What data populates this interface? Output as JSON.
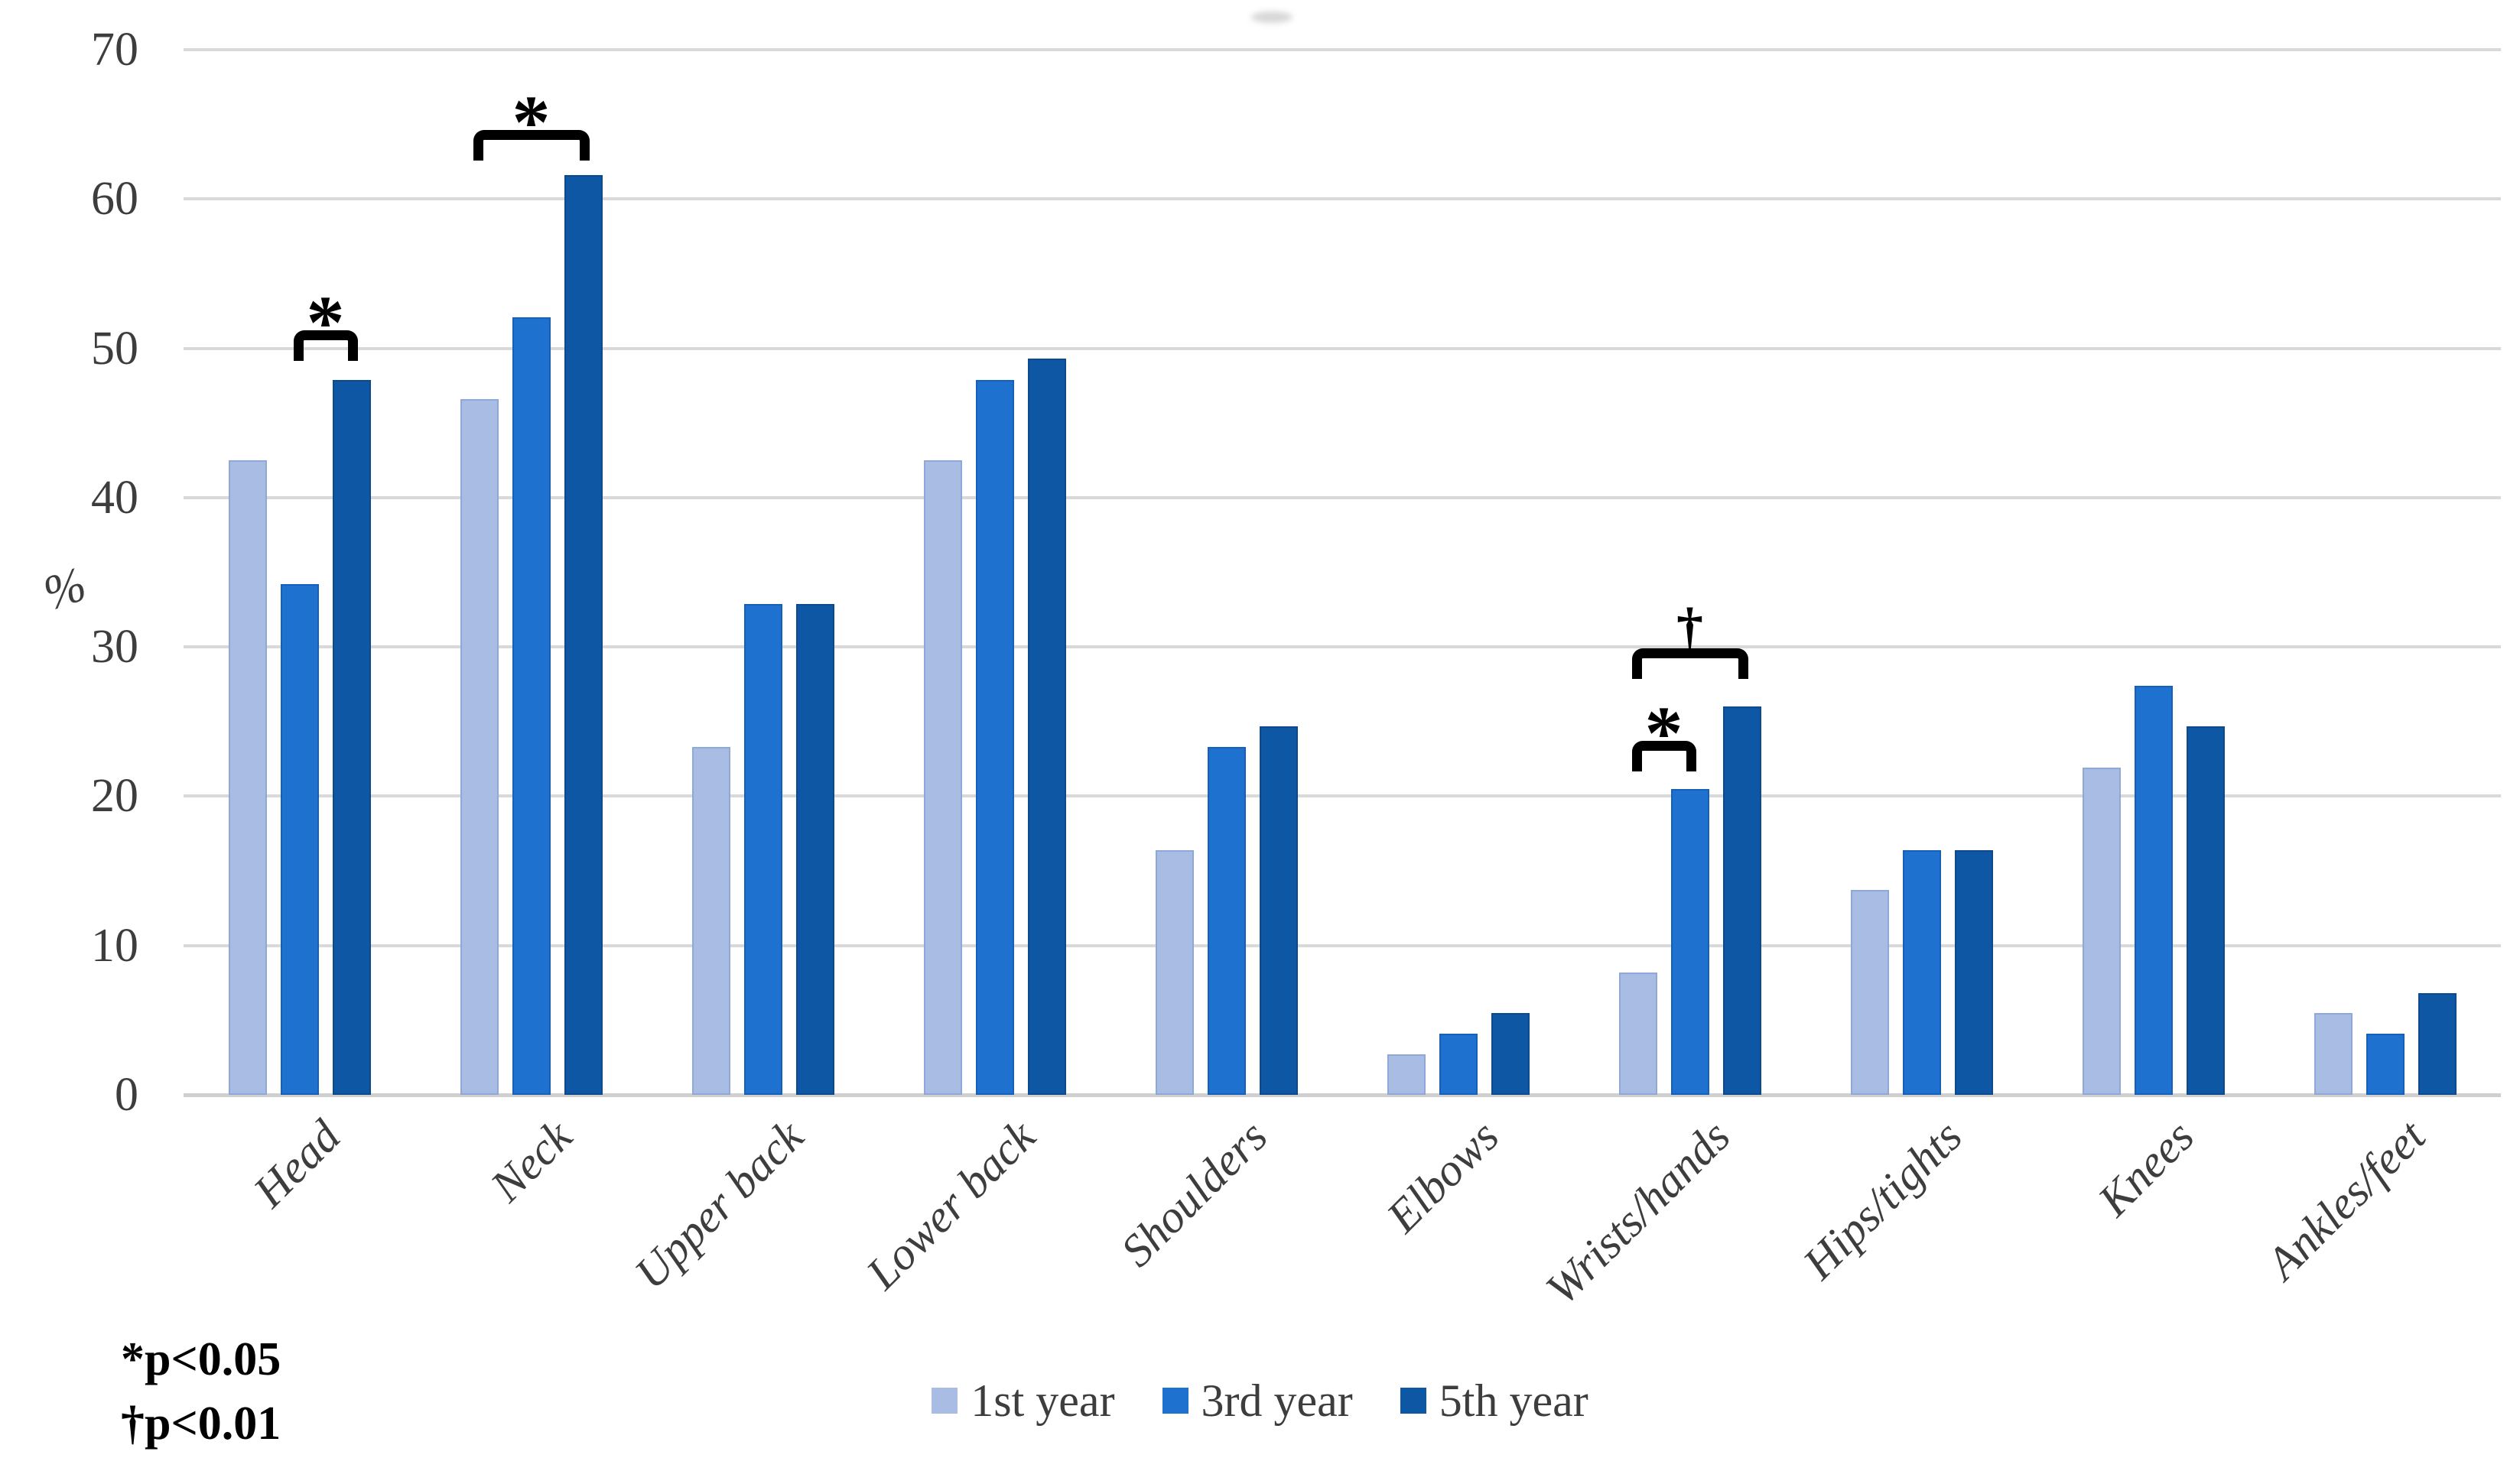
{
  "chart_data": {
    "type": "bar",
    "title": "",
    "xlabel": "",
    "ylabel": "%",
    "ylim": [
      0,
      70
    ],
    "yticks": [
      0,
      10,
      20,
      30,
      40,
      50,
      60,
      70
    ],
    "grid": true,
    "legend_position": "bottom",
    "categories": [
      "Head",
      "Neck",
      "Upper back",
      "Lower back",
      "Shoulders",
      "Elbows",
      "Wrists/hands",
      "Hips/tights",
      "Knees",
      "Ankles/feet"
    ],
    "series": [
      {
        "name": "1st year",
        "color": "#a9bce3",
        "edge": "#8ea9d8",
        "values": [
          42.5,
          46.6,
          23.3,
          42.5,
          16.4,
          2.7,
          8.2,
          13.7,
          21.9,
          5.5
        ]
      },
      {
        "name": "3rd year",
        "color": "#1e71cf",
        "edge": "#1760b8",
        "values": [
          34.2,
          52.1,
          32.9,
          47.9,
          23.3,
          4.1,
          20.5,
          16.4,
          27.4,
          4.1
        ]
      },
      {
        "name": "5th year",
        "color": "#0e57a4",
        "edge": "#0c4a8d",
        "values": [
          47.9,
          61.6,
          32.9,
          49.3,
          24.7,
          5.5,
          26.0,
          16.4,
          24.7,
          6.8
        ]
      }
    ],
    "annotations": [
      {
        "category": "Head",
        "symbol": "*",
        "from_series": 1,
        "to_series": 2,
        "line_y": 51.2
      },
      {
        "category": "Neck",
        "symbol": "*",
        "from_series": 0,
        "to_series": 2,
        "line_y": 64.6
      },
      {
        "category": "Wrists/hands",
        "symbol": "*",
        "from_series": 0,
        "to_series": 1,
        "line_y": 23.7
      },
      {
        "category": "Wrists/hands",
        "symbol": "†",
        "from_series": 0,
        "to_series": 2,
        "line_y": 29.9
      }
    ],
    "footnotes": [
      "*p<0.05",
      "†p<0.01"
    ]
  }
}
